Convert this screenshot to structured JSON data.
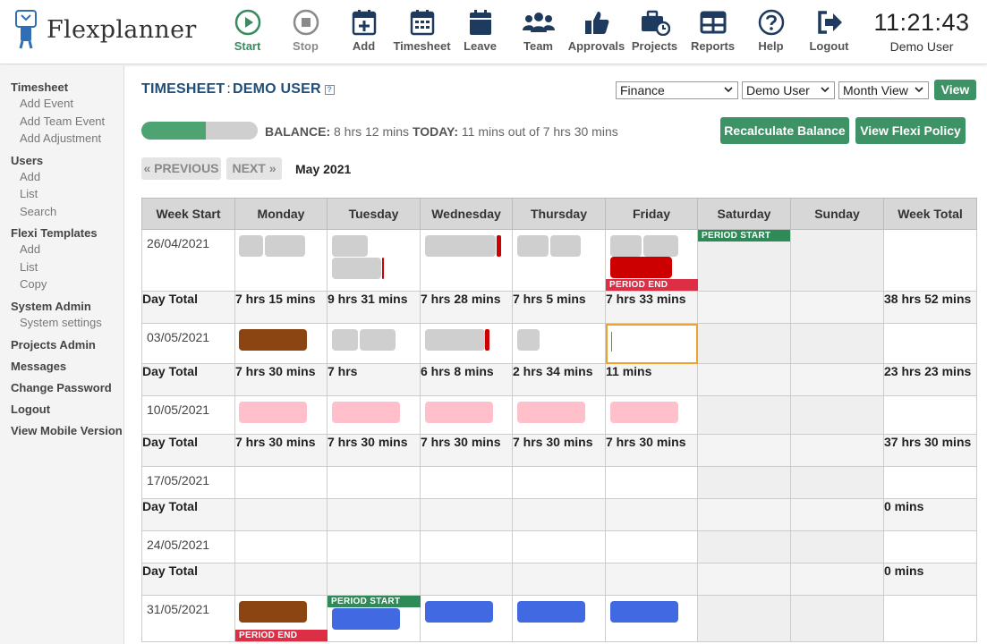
{
  "header": {
    "brand": "Flexplanner",
    "clock": "11:21:43",
    "user": "Demo User",
    "nav": [
      {
        "label": "Start",
        "icon": "play-circle-icon"
      },
      {
        "label": "Stop",
        "icon": "stop-circle-icon"
      },
      {
        "label": "Add",
        "icon": "calendar-plus-icon"
      },
      {
        "label": "Timesheet",
        "icon": "calendar-grid-icon"
      },
      {
        "label": "Leave",
        "icon": "calendar-icon"
      },
      {
        "label": "Team",
        "icon": "team-icon"
      },
      {
        "label": "Approvals",
        "icon": "thumbs-up-icon"
      },
      {
        "label": "Projects",
        "icon": "briefcase-clock-icon"
      },
      {
        "label": "Reports",
        "icon": "table-icon"
      },
      {
        "label": "Help",
        "icon": "question-circle-icon"
      },
      {
        "label": "Logout",
        "icon": "logout-icon"
      }
    ]
  },
  "sidebar": {
    "timesheet": "Timesheet",
    "add_event": "Add Event",
    "add_team_event": "Add Team Event",
    "add_adjustment": "Add Adjustment",
    "users": "Users",
    "users_add": "Add",
    "users_list": "List",
    "users_search": "Search",
    "flexi_templates": "Flexi Templates",
    "ft_add": "Add",
    "ft_list": "List",
    "ft_copy": "Copy",
    "system_admin": "System Admin",
    "system_settings": "System settings",
    "projects_admin": "Projects Admin",
    "messages": "Messages",
    "change_password": "Change Password",
    "logout": "Logout",
    "mobile": "View Mobile Version"
  },
  "main": {
    "title_a": "TIMESHEET",
    "title_sep": ":",
    "title_b": "DEMO USER",
    "help_mark": "?",
    "dept_select": "Finance",
    "user_select": "Demo User",
    "view_select": "Month View",
    "view_button": "View",
    "progress_fraction": 0.55,
    "balance_label": "BALANCE:",
    "balance_value": "8 hrs 12 mins",
    "today_label": "TODAY:",
    "today_value": "11 mins out of 7 hrs 30 mins",
    "recalc_button": "Recalculate Balance",
    "policy_button": "View Flexi Policy",
    "prev_button": "« PREVIOUS",
    "next_button": "NEXT »",
    "month": "May 2021"
  },
  "table": {
    "headers": [
      "Week Start",
      "Monday",
      "Tuesday",
      "Wednesday",
      "Thursday",
      "Friday",
      "Saturday",
      "Sunday",
      "Week Total"
    ],
    "day_total_label": "Day Total",
    "period_start": "PERIOD START",
    "period_end": "PERIOD END",
    "weeks": [
      {
        "start": "26/04/2021",
        "totals": [
          "7 hrs 15 mins",
          "9 hrs 31 mins",
          "7 hrs 28 mins",
          "7 hrs 5 mins",
          "7 hrs 33 mins",
          "",
          "",
          "38 hrs 52 mins"
        ]
      },
      {
        "start": "03/05/2021",
        "totals": [
          "7 hrs 30 mins",
          "7 hrs",
          "6 hrs 8 mins",
          "2 hrs 34 mins",
          "11 mins",
          "",
          "",
          "23 hrs 23 mins"
        ]
      },
      {
        "start": "10/05/2021",
        "totals": [
          "7 hrs 30 mins",
          "7 hrs 30 mins",
          "7 hrs 30 mins",
          "7 hrs 30 mins",
          "7 hrs 30 mins",
          "",
          "",
          "37 hrs 30 mins"
        ]
      },
      {
        "start": "17/05/2021",
        "totals": [
          "",
          "",
          "",
          "",
          "",
          "",
          "",
          "0 mins"
        ]
      },
      {
        "start": "24/05/2021",
        "totals": [
          "",
          "",
          "",
          "",
          "",
          "",
          "",
          "0 mins"
        ]
      },
      {
        "start": "31/05/2021",
        "totals": []
      }
    ]
  },
  "colors": {
    "green": "#3e9366",
    "title_blue": "#1f4e79",
    "event_grey": "#cfcfcf",
    "event_red": "#cc0000",
    "event_brown": "#8b4513",
    "event_pink": "#ffc0cb",
    "event_blue": "#4169e1"
  }
}
